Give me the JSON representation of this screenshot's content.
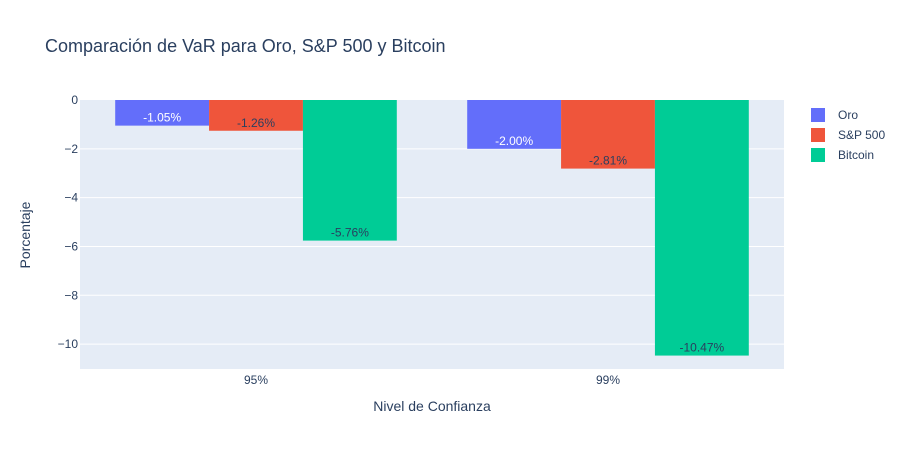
{
  "chart_data": {
    "type": "bar",
    "title": "Comparación de VaR para Oro, S&P 500 y Bitcoin",
    "xlabel": "Nivel de Confianza",
    "ylabel": "Porcentaje",
    "categories": [
      "95%",
      "99%"
    ],
    "series": [
      {
        "name": "Oro",
        "color": "#636efa",
        "values": [
          -1.05,
          -2.0
        ],
        "labels": [
          "-1.05%",
          "-2.00%"
        ],
        "label_color": "#ffffff"
      },
      {
        "name": "S&P 500",
        "color": "#ef553b",
        "values": [
          -1.26,
          -2.81
        ],
        "labels": [
          "-1.26%",
          "-2.81%"
        ],
        "label_color": "#2a3f5f"
      },
      {
        "name": "Bitcoin",
        "color": "#00cc96",
        "values": [
          -5.76,
          -10.47
        ],
        "labels": [
          "-5.76%",
          "-10.47%"
        ],
        "label_color": "#2a3f5f"
      }
    ],
    "yticks": [
      0,
      -2,
      -4,
      -6,
      -8,
      -10
    ],
    "ytick_labels": [
      "0",
      "−2",
      "−4",
      "−6",
      "−8",
      "−10"
    ],
    "ylim": [
      -11.02,
      0
    ],
    "grid": true,
    "legend_position": "top-right",
    "plot_background": "#e5ecf6"
  }
}
